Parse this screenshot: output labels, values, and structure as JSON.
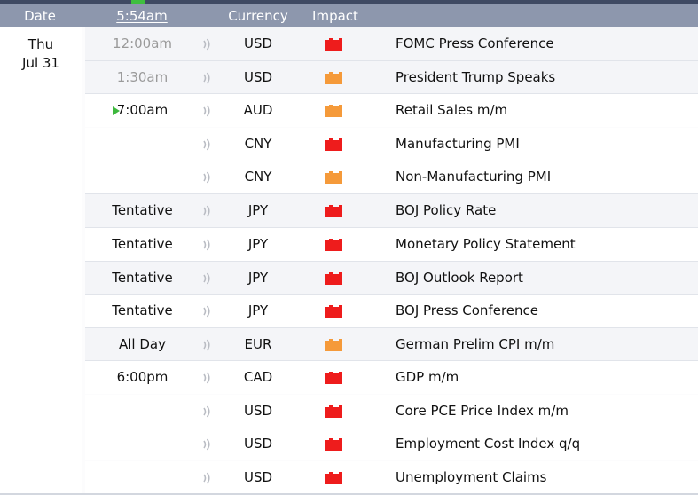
{
  "header": {
    "date_label": "Date",
    "time_label": "5:54am",
    "currency_label": "Currency",
    "impact_label": "Impact"
  },
  "day": {
    "weekday": "Thu",
    "date": "Jul 31"
  },
  "impact_colors": {
    "high": "#ee1c1c",
    "medium": "#f59a3a"
  },
  "events": [
    {
      "time": "12:00am",
      "past": true,
      "current": false,
      "currency": "USD",
      "impact": "high",
      "event": "FOMC Press Conference"
    },
    {
      "time": "1:30am",
      "past": true,
      "current": false,
      "currency": "USD",
      "impact": "medium",
      "event": "President Trump Speaks"
    },
    {
      "time": "7:00am",
      "past": false,
      "current": true,
      "currency": "AUD",
      "impact": "medium",
      "event": "Retail Sales m/m"
    },
    {
      "time": "",
      "past": false,
      "current": false,
      "currency": "CNY",
      "impact": "high",
      "event": "Manufacturing PMI"
    },
    {
      "time": "",
      "past": false,
      "current": false,
      "currency": "CNY",
      "impact": "medium",
      "event": "Non-Manufacturing PMI"
    },
    {
      "time": "Tentative",
      "past": false,
      "current": false,
      "currency": "JPY",
      "impact": "high",
      "event": "BOJ Policy Rate"
    },
    {
      "time": "Tentative",
      "past": false,
      "current": false,
      "currency": "JPY",
      "impact": "high",
      "event": "Monetary Policy Statement"
    },
    {
      "time": "Tentative",
      "past": false,
      "current": false,
      "currency": "JPY",
      "impact": "high",
      "event": "BOJ Outlook Report"
    },
    {
      "time": "Tentative",
      "past": false,
      "current": false,
      "currency": "JPY",
      "impact": "high",
      "event": "BOJ Press Conference"
    },
    {
      "time": "All Day",
      "past": false,
      "current": false,
      "currency": "EUR",
      "impact": "medium",
      "event": "German Prelim CPI m/m"
    },
    {
      "time": "6:00pm",
      "past": false,
      "current": false,
      "currency": "CAD",
      "impact": "high",
      "event": "GDP m/m"
    },
    {
      "time": "",
      "past": false,
      "current": false,
      "currency": "USD",
      "impact": "high",
      "event": "Core PCE Price Index m/m"
    },
    {
      "time": "",
      "past": false,
      "current": false,
      "currency": "USD",
      "impact": "high",
      "event": "Employment Cost Index q/q"
    },
    {
      "time": "",
      "past": false,
      "current": false,
      "currency": "USD",
      "impact": "high",
      "event": "Unemployment Claims"
    }
  ]
}
